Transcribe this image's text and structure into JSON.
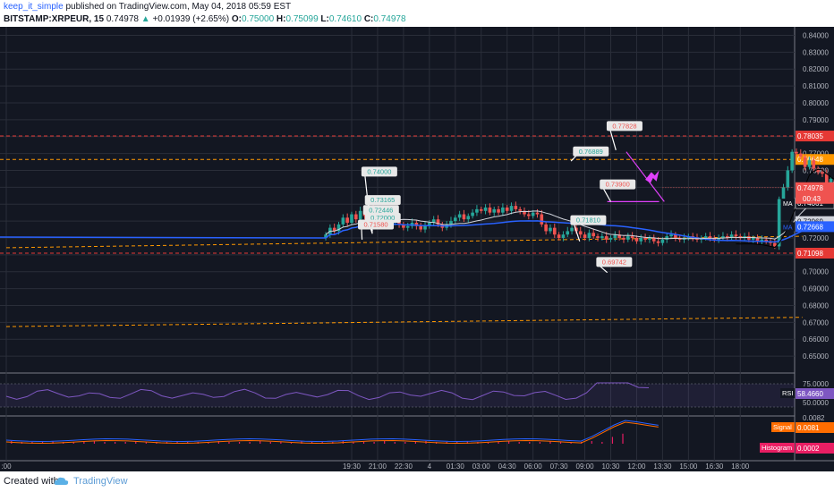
{
  "header": {
    "author": "keep_it_simple",
    "published_text": "published on TradingView.com, May 04, 2018 05:59 EST",
    "symbol": "BITSTAMP:XRPEUR, 15",
    "last": "0.74978",
    "change": "+0.01939 (+2.65%)",
    "o_label": "O:",
    "o": "0.75000",
    "h_label": "H:",
    "h": "0.75099",
    "l_label": "L:",
    "l": "0.74610",
    "c_label": "C:",
    "c": "0.74978"
  },
  "footer": {
    "created_with": "Created with",
    "brand": "TradingView"
  },
  "colors": {
    "bg": "#131722",
    "up": "#26a69a",
    "down": "#ef5350",
    "red_line": "#e53935",
    "orange_line": "#ff9800",
    "magenta": "#e040fb",
    "ma_white": "#d1d4dc",
    "ma_blue": "#2962ff",
    "signal": "#ff6d00",
    "histogram": "#e91e63"
  },
  "chart_data": {
    "type": "candlestick",
    "price_axis": {
      "min": 0.64,
      "max": 0.845,
      "ticks": [
        "0.84000",
        "0.83000",
        "0.82000",
        "0.81000",
        "0.80000",
        "0.79000",
        "0.78000",
        "0.77000",
        "0.76000",
        "0.75000",
        "0.74000",
        "0.73000",
        "0.72000",
        "0.71000",
        "0.70000",
        "0.69000",
        "0.68000",
        "0.67000",
        "0.66000",
        "0.65000"
      ]
    },
    "time_axis": {
      "labels": [
        {
          "t": -0.5,
          "label": ":00"
        },
        {
          "t": 19.5,
          "label": "19:30"
        },
        {
          "t": 21,
          "label": "21:00"
        },
        {
          "t": 22.5,
          "label": "22:30"
        },
        {
          "t": 24,
          "label": "4"
        },
        {
          "t": 25.5,
          "label": "01:30"
        },
        {
          "t": 27,
          "label": "03:00"
        },
        {
          "t": 28.5,
          "label": "04:30"
        },
        {
          "t": 30,
          "label": "06:00"
        },
        {
          "t": 31.5,
          "label": "07:30"
        },
        {
          "t": 33,
          "label": "09:00"
        },
        {
          "t": 34.5,
          "label": "10:30"
        },
        {
          "t": 36,
          "label": "12:00"
        },
        {
          "t": 37.5,
          "label": "13:30"
        },
        {
          "t": 39,
          "label": "15:00"
        },
        {
          "t": 40.5,
          "label": "16:30"
        },
        {
          "t": 42,
          "label": "18:00"
        }
      ]
    },
    "candles": {
      "start_t": 18.0,
      "step_t": 0.25,
      "close": [
        0.722,
        0.726,
        0.724,
        0.728,
        0.732,
        0.729,
        0.734,
        0.731,
        0.736,
        0.733,
        0.738,
        0.735,
        0.73,
        0.728,
        0.727,
        0.729,
        0.731,
        0.728,
        0.726,
        0.727,
        0.729,
        0.727,
        0.725,
        0.727,
        0.729,
        0.731,
        0.728,
        0.726,
        0.728,
        0.73,
        0.732,
        0.734,
        0.731,
        0.733,
        0.735,
        0.737,
        0.736,
        0.738,
        0.735,
        0.737,
        0.735,
        0.738,
        0.736,
        0.739,
        0.737,
        0.736,
        0.734,
        0.733,
        0.735,
        0.734,
        0.728,
        0.724,
        0.726,
        0.722,
        0.72,
        0.722,
        0.724,
        0.726,
        0.724,
        0.722,
        0.72,
        0.723,
        0.721,
        0.72,
        0.721,
        0.719,
        0.72,
        0.722,
        0.72,
        0.719,
        0.721,
        0.72,
        0.718,
        0.72,
        0.719,
        0.72,
        0.718,
        0.717,
        0.719,
        0.721,
        0.722,
        0.72,
        0.719,
        0.72,
        0.721,
        0.72,
        0.719,
        0.72,
        0.721,
        0.72,
        0.719,
        0.72,
        0.721,
        0.72,
        0.722,
        0.721,
        0.72,
        0.721,
        0.719,
        0.72,
        0.718,
        0.719,
        0.718,
        0.717,
        0.715,
        0.743,
        0.75,
        0.76,
        0.771,
        0.77,
        0.768,
        0.762,
        0.766,
        0.761,
        0.759,
        0.758,
        0.752,
        0.755,
        0.753,
        0.754,
        0.752,
        0.751,
        0.75
      ],
      "last_price": 0.74978
    },
    "horizontal_lines": [
      {
        "price": 0.78035,
        "style": "red-dashed",
        "label": "0.78035"
      },
      {
        "price": 0.76648,
        "style": "orange-dashed",
        "label": "0.76648"
      },
      {
        "price": 0.71098,
        "style": "red-dashed",
        "label": "0.71098"
      }
    ],
    "sloped_lines": [
      {
        "style": "orange-dashed",
        "from": [
          -0.5,
          0.7142
        ],
        "to": [
          45.6,
          0.721
        ]
      },
      {
        "style": "orange-dashed",
        "from": [
          -0.5,
          0.6675
        ],
        "to": [
          45.6,
          0.673
        ]
      }
    ],
    "moving_averages": [
      {
        "label": "MA",
        "value": "0.74061",
        "price": 0.74061,
        "color": "#131722"
      },
      {
        "label": "",
        "value": "0.72969",
        "price": 0.72969,
        "color": "#d1d4dc"
      },
      {
        "label": "MA",
        "value": "0.72668",
        "price": 0.72668,
        "color": "#2962ff"
      }
    ],
    "price_badge": {
      "value": "0.74978",
      "countdown": "00:43"
    },
    "callouts": [
      {
        "t": 21.1,
        "p": 0.7595,
        "text": "0.74000",
        "kind": "green",
        "tip": [
          20.6,
          0.726
        ]
      },
      {
        "t": 21.3,
        "p": 0.7427,
        "text": "0.73165",
        "kind": "green",
        "tip": [
          20.7,
          0.724
        ]
      },
      {
        "t": 21.2,
        "p": 0.7368,
        "text": "0.72446",
        "kind": "green",
        "tip": [
          20.7,
          0.723
        ]
      },
      {
        "t": 21.3,
        "p": 0.7322,
        "text": "0.72000",
        "kind": "green",
        "tip": [
          20.7,
          0.7225
        ]
      },
      {
        "t": 20.9,
        "p": 0.7282,
        "text": "0.71580",
        "kind": "red",
        "tip": [
          20.1,
          0.719
        ]
      },
      {
        "t": 33.35,
        "p": 0.7715,
        "text": "0.76889",
        "kind": "green",
        "tip": [
          32.2,
          0.7655
        ]
      },
      {
        "t": 35.3,
        "p": 0.7865,
        "text": "0.77828",
        "kind": "red",
        "tip": [
          34.8,
          0.772
        ]
      },
      {
        "t": 34.9,
        "p": 0.752,
        "text": "0.73900",
        "kind": "red",
        "tip": [
          34.5,
          0.7415
        ]
      },
      {
        "t": 33.2,
        "p": 0.7308,
        "text": "0.71810",
        "kind": "green",
        "tip": [
          32.7,
          0.718
        ]
      },
      {
        "t": 34.7,
        "p": 0.706,
        "text": "0.69742",
        "kind": "red",
        "tip": [
          34.3,
          0.6995
        ]
      }
    ],
    "rsi": {
      "label": "RSI",
      "value": "58.4660",
      "ticks": [
        "75.0000",
        "50.0000"
      ],
      "color": "#7e57c2"
    },
    "macd": {
      "signal_label": "Signal",
      "signal_value": "0.0081",
      "histogram_label": "Histogram",
      "histogram_value": "0.0002",
      "top_value": "0.0082"
    }
  }
}
